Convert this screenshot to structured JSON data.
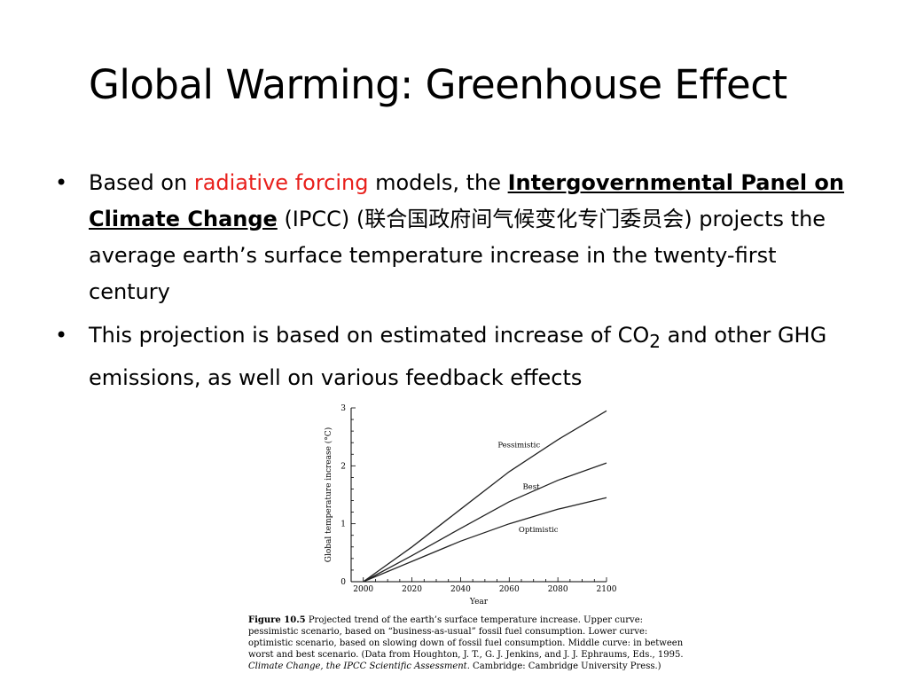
{
  "slide": {
    "title": "Global Warming: Greenhouse Effect",
    "bullets": [
      {
        "parts": [
          "Based on ",
          "radiative forcing",
          " models, the ",
          "Intergovernmental Panel on Climate Change",
          " (IPCC) (",
          "联合国政府间气候变化专门委员会",
          ") projects the average earth’s surface temperature increase in the twenty-first century"
        ]
      },
      {
        "parts": [
          "This projection is based on estimated increase of CO",
          "2",
          " and other GHG emissions, as well on various feedback effects"
        ]
      }
    ],
    "caption": {
      "figure_id": "Figure 10.5",
      "text1": "Projected trend of the earth’s surface temperature increase. Upper curve: pessimistic scenario, based on “business-as-usual” fossil fuel consumption. Lower curve: optimistic scenario, based on slowing down of fossil fuel consumption. Middle curve: in between worst and best scenario. (Data from Houghton, J. T., G. J. Jenkins, and J. J. Ephraums, Eds., 1995. ",
      "italic": "Climate Change, the IPCC Scientific Assessment",
      "text2": ". Cambridge: Cambridge University Press.)"
    }
  },
  "chart_data": {
    "type": "line",
    "xlabel": "Year",
    "ylabel": "Global temperature increase (°C)",
    "x": [
      2000,
      2020,
      2040,
      2060,
      2080,
      2100
    ],
    "xlim": [
      1995,
      2100
    ],
    "ylim": [
      0,
      3
    ],
    "xticks": [
      "2000",
      "2020",
      "2040",
      "2060",
      "2080",
      "2100"
    ],
    "yticks": [
      "0",
      "1",
      "2",
      "3"
    ],
    "series": [
      {
        "name": "Pessimistic",
        "values": [
          0,
          0.6,
          1.25,
          1.9,
          2.45,
          2.95
        ]
      },
      {
        "name": "Best",
        "values": [
          0,
          0.45,
          0.92,
          1.38,
          1.75,
          2.05
        ]
      },
      {
        "name": "Optimistic",
        "values": [
          0,
          0.35,
          0.7,
          1.0,
          1.25,
          1.45
        ]
      }
    ],
    "grid": false,
    "legend": "inline labels"
  }
}
